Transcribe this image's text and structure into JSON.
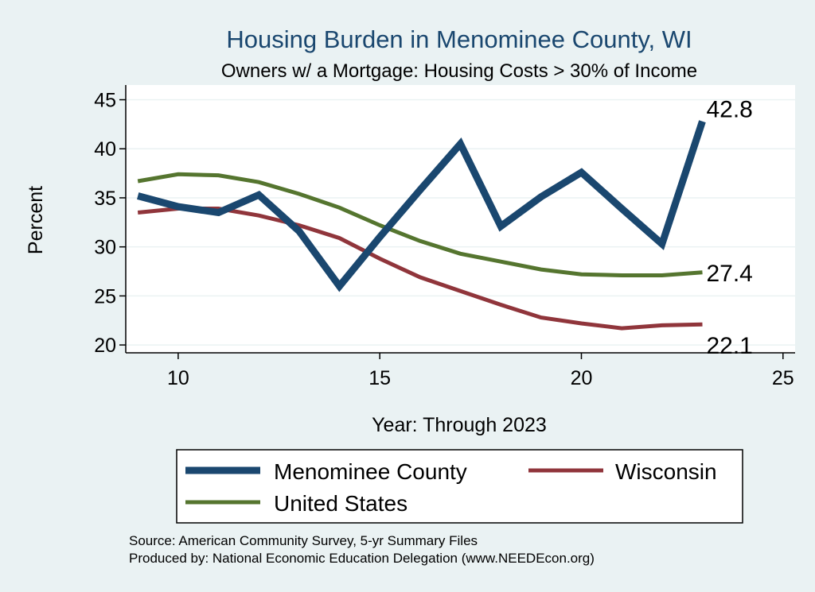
{
  "chart_data": {
    "type": "line",
    "title": "Housing Burden in Menominee County, WI",
    "subtitle": "Owners w/ a Mortgage: Housing Costs > 30% of Income",
    "xlabel": "Year: Through 2023",
    "ylabel": "Percent",
    "xlim": [
      8.7,
      25.3
    ],
    "ylim": [
      19.2,
      46.5
    ],
    "xticks": [
      10,
      15,
      20,
      25
    ],
    "yticks": [
      20,
      25,
      30,
      35,
      40,
      45
    ],
    "grid": true,
    "legend_position": "bottom",
    "series": [
      {
        "name": "Menominee County",
        "color": "#1a476f",
        "width": 9,
        "x": [
          9,
          10,
          11,
          12,
          13,
          14,
          15,
          16,
          17,
          18,
          19,
          20,
          21,
          22,
          23
        ],
        "values": [
          35.2,
          34.1,
          33.5,
          35.3,
          31.6,
          26.0,
          31.0,
          35.8,
          40.5,
          32.1,
          35.1,
          37.6,
          33.9,
          30.3,
          42.8
        ],
        "end_label": "42.8"
      },
      {
        "name": "Wisconsin",
        "color": "#90353b",
        "width": 5,
        "x": [
          9,
          10,
          11,
          12,
          13,
          14,
          15,
          16,
          17,
          18,
          19,
          20,
          21,
          22,
          23
        ],
        "values": [
          33.5,
          33.9,
          33.9,
          33.2,
          32.2,
          30.9,
          28.8,
          26.9,
          25.5,
          24.1,
          22.8,
          22.2,
          21.7,
          22.0,
          22.1
        ],
        "end_label": "22.1"
      },
      {
        "name": "United States",
        "color": "#55752f",
        "width": 5,
        "x": [
          9,
          10,
          11,
          12,
          13,
          14,
          15,
          16,
          17,
          18,
          19,
          20,
          21,
          22,
          23
        ],
        "values": [
          36.7,
          37.4,
          37.3,
          36.6,
          35.4,
          34.0,
          32.2,
          30.6,
          29.3,
          28.5,
          27.7,
          27.2,
          27.1,
          27.1,
          27.4
        ],
        "end_label": "27.4"
      }
    ],
    "legend": [
      {
        "name": "Menominee County",
        "color": "#1a476f"
      },
      {
        "name": "Wisconsin",
        "color": "#90353b"
      },
      {
        "name": "United States",
        "color": "#55752f"
      }
    ]
  },
  "source": {
    "line1": "Source: American Community Survey, 5-yr Summary Files",
    "line2": "Produced by: National Economic Education Delegation (www.NEEDEcon.org)"
  }
}
